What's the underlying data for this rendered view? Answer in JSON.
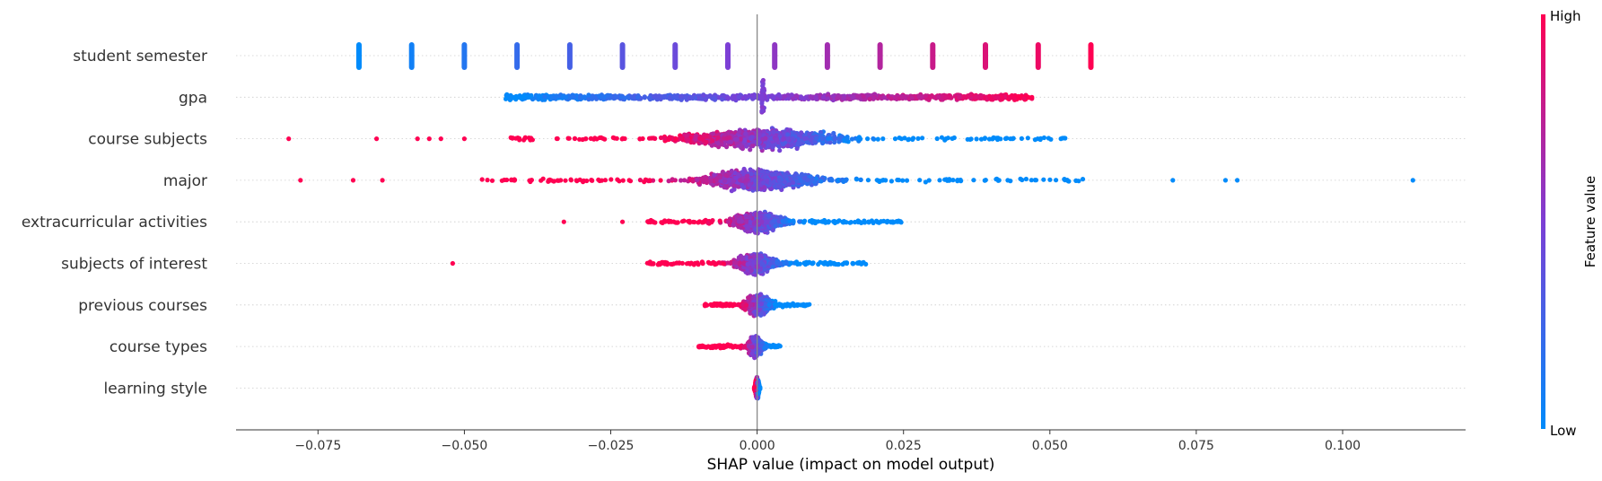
{
  "chart_data": {
    "type": "scatter",
    "variant": "shap-beeswarm",
    "xlabel": "SHAP value (impact on model output)",
    "xlim": [
      -0.089,
      0.121
    ],
    "xticks": [
      -0.075,
      -0.05,
      -0.025,
      0.0,
      0.025,
      0.05,
      0.075,
      0.1
    ],
    "xtick_labels": [
      "−0.075",
      "−0.050",
      "−0.025",
      "0.000",
      "0.025",
      "0.050",
      "0.075",
      "0.100"
    ],
    "grid": false,
    "zero_line": true,
    "colorbar": {
      "title": "Feature value",
      "high_label": "High",
      "low_label": "Low",
      "low_color": "#008bfb",
      "mid_color": "#7c3fd5",
      "high_color": "#ff0052"
    },
    "features": [
      {
        "name": "student semester",
        "kind": "discrete",
        "points": [
          {
            "x": -0.068,
            "v": 0.0
          },
          {
            "x": -0.059,
            "v": 0.07
          },
          {
            "x": -0.05,
            "v": 0.14
          },
          {
            "x": -0.041,
            "v": 0.21
          },
          {
            "x": -0.032,
            "v": 0.28
          },
          {
            "x": -0.023,
            "v": 0.36
          },
          {
            "x": -0.014,
            "v": 0.43
          },
          {
            "x": -0.005,
            "v": 0.5
          },
          {
            "x": 0.003,
            "v": 0.57
          },
          {
            "x": 0.012,
            "v": 0.64
          },
          {
            "x": 0.021,
            "v": 0.71
          },
          {
            "x": 0.03,
            "v": 0.79
          },
          {
            "x": 0.039,
            "v": 0.86
          },
          {
            "x": 0.048,
            "v": 0.93
          },
          {
            "x": 0.057,
            "v": 1.0
          }
        ]
      },
      {
        "name": "gpa",
        "kind": "dense",
        "range": [
          -0.043,
          0.047
        ],
        "spikes": [
          0.001
        ],
        "outliers": []
      },
      {
        "name": "course subjects",
        "kind": "beeswarm",
        "range": [
          -0.043,
          0.053
        ],
        "dense": [
          -0.02,
          0.02
        ],
        "center": 0.002,
        "outliers": [
          -0.08,
          -0.065,
          -0.058,
          -0.056,
          -0.054,
          -0.05
        ]
      },
      {
        "name": "major",
        "kind": "beeswarm",
        "range": [
          -0.047,
          0.057
        ],
        "dense": [
          -0.014,
          0.016
        ],
        "center": -0.0005,
        "outliers": [
          -0.078,
          -0.069,
          -0.064,
          0.071,
          0.08,
          0.082,
          0.112
        ]
      },
      {
        "name": "extracurricular activities",
        "kind": "beeswarm",
        "range": [
          -0.019,
          0.026
        ],
        "dense": [
          -0.006,
          0.007
        ],
        "center": 0.0,
        "outliers": [
          -0.033,
          -0.023
        ]
      },
      {
        "name": "subjects of interest",
        "kind": "beeswarm",
        "range": [
          -0.019,
          0.019
        ],
        "dense": [
          -0.005,
          0.005
        ],
        "center": -0.0005,
        "outliers": [
          -0.052
        ]
      },
      {
        "name": "previous courses",
        "kind": "beeswarm",
        "range": [
          -0.009,
          0.009
        ],
        "dense": [
          -0.003,
          0.004
        ],
        "center": 0.0,
        "outliers": []
      },
      {
        "name": "course types",
        "kind": "beeswarm",
        "range": [
          -0.01,
          0.004
        ],
        "dense": [
          -0.002,
          0.002
        ],
        "center": -0.0005,
        "outliers": []
      },
      {
        "name": "learning style",
        "kind": "beeswarm",
        "range": [
          -0.0005,
          0.0005
        ],
        "dense": [
          -0.0005,
          0.0005
        ],
        "center": 0.0,
        "outliers": []
      }
    ]
  }
}
